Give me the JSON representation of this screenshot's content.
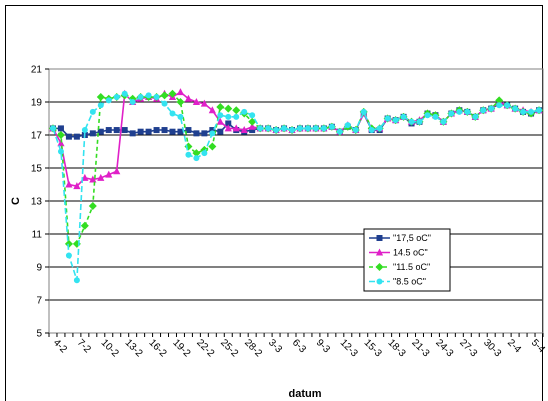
{
  "chart_data": {
    "type": "line",
    "title": "",
    "xlabel": "datum",
    "ylabel": "C",
    "ylim": [
      5,
      21
    ],
    "yticks": [
      5,
      7,
      9,
      11,
      13,
      15,
      17,
      19,
      21
    ],
    "grid": "horizontal",
    "legend_position": "right-middle",
    "categories": [
      "4-2",
      "5-2",
      "6-2",
      "7-2",
      "8-2",
      "9-2",
      "10-2",
      "11-2",
      "12-2",
      "13-2",
      "14-2",
      "15-2",
      "16-2",
      "17-2",
      "18-2",
      "19-2",
      "20-2",
      "21-2",
      "22-2",
      "23-2",
      "24-2",
      "25-2",
      "26-2",
      "27-2",
      "28-2",
      "1-3",
      "2-3",
      "3-3",
      "4-3",
      "5-3",
      "6-3",
      "7-3",
      "8-3",
      "9-3",
      "10-3",
      "11-3",
      "12-3",
      "13-3",
      "14-3",
      "15-3",
      "16-3",
      "17-3",
      "18-3",
      "19-3",
      "20-3",
      "21-3",
      "22-3",
      "23-3",
      "24-3",
      "25-3",
      "26-3",
      "27-3",
      "28-3",
      "29-3",
      "30-3",
      "31-3",
      "1-4",
      "2-4",
      "3-4",
      "4-4",
      "5-4",
      "6-4"
    ],
    "x_tick_labels": [
      "4-2",
      "7-2",
      "10-2",
      "13-2",
      "16-2",
      "19-2",
      "22-2",
      "25-2",
      "28-2",
      "3-3",
      "6-3",
      "9-3",
      "12-3",
      "15-3",
      "18-3",
      "21-3",
      "24-3",
      "27-3",
      "30-3",
      "2-4",
      "5-4"
    ],
    "series": [
      {
        "name": "\"17,5 oC\"",
        "color": "#1f3f8f",
        "marker": "square",
        "dash": "",
        "values": [
          17.4,
          17.4,
          16.9,
          16.9,
          17.0,
          17.1,
          17.2,
          17.3,
          17.3,
          17.3,
          17.1,
          17.2,
          17.2,
          17.3,
          17.3,
          17.2,
          17.2,
          17.3,
          17.1,
          17.1,
          17.3,
          17.2,
          17.7,
          17.3,
          17.2,
          17.3,
          17.4,
          17.4,
          17.3,
          17.4,
          17.3,
          17.4,
          17.4,
          17.4,
          17.4,
          17.5,
          17.2,
          17.5,
          17.3,
          18.3,
          17.3,
          17.3,
          18.0,
          17.9,
          18.1,
          17.7,
          17.8,
          18.3,
          18.2,
          17.8,
          18.3,
          18.5,
          18.4,
          18.1,
          18.5,
          18.6,
          18.9,
          18.8,
          18.6,
          18.4,
          18.3,
          18.5
        ]
      },
      {
        "name": "14.5 oC\"",
        "color": "#e020c8",
        "marker": "triangle",
        "dash": "",
        "values": [
          17.4,
          16.5,
          14.0,
          13.9,
          14.4,
          14.3,
          14.4,
          14.6,
          14.8,
          19.5,
          19.0,
          19.2,
          19.3,
          19.2,
          19.5,
          19.3,
          19.6,
          19.2,
          19.0,
          18.9,
          18.5,
          17.8,
          17.4,
          17.4,
          17.3,
          17.5,
          17.4,
          17.4,
          17.3,
          17.4,
          17.3,
          17.4,
          17.4,
          17.4,
          17.4,
          17.5,
          17.2,
          17.6,
          17.3,
          18.3,
          17.4,
          17.4,
          18.0,
          17.9,
          18.1,
          17.8,
          17.9,
          18.3,
          18.2,
          17.8,
          18.3,
          18.5,
          18.4,
          18.1,
          18.5,
          18.6,
          19.0,
          18.8,
          18.6,
          18.5,
          18.4,
          18.5
        ]
      },
      {
        "name": "\"11.5 oC\"",
        "color": "#33dd22",
        "marker": "diamond",
        "dash": "4,3",
        "values": [
          17.4,
          17.0,
          10.4,
          10.4,
          11.5,
          12.7,
          19.3,
          19.2,
          19.3,
          19.4,
          19.2,
          19.3,
          19.3,
          19.3,
          19.4,
          19.5,
          19.0,
          16.3,
          15.9,
          16.1,
          16.3,
          18.7,
          18.6,
          18.5,
          18.3,
          17.8,
          17.4,
          17.4,
          17.3,
          17.4,
          17.3,
          17.4,
          17.4,
          17.4,
          17.4,
          17.5,
          17.2,
          17.5,
          17.3,
          18.4,
          17.4,
          17.4,
          18.0,
          17.9,
          18.1,
          17.8,
          17.8,
          18.3,
          18.2,
          17.8,
          18.3,
          18.5,
          18.4,
          18.1,
          18.5,
          18.6,
          19.1,
          18.8,
          18.6,
          18.4,
          18.3,
          18.5
        ]
      },
      {
        "name": "\"8.5 oC\"",
        "color": "#33e3f0",
        "marker": "circle",
        "dash": "6,3",
        "values": [
          17.4,
          16.0,
          9.7,
          8.2,
          17.3,
          18.4,
          18.8,
          19.1,
          19.3,
          19.5,
          19.0,
          19.3,
          19.4,
          19.3,
          18.9,
          18.3,
          18.1,
          15.8,
          15.6,
          15.9,
          17.1,
          18.2,
          18.1,
          18.1,
          18.4,
          18.2,
          17.4,
          17.4,
          17.3,
          17.4,
          17.3,
          17.4,
          17.4,
          17.4,
          17.4,
          17.5,
          17.2,
          17.6,
          17.3,
          18.4,
          17.3,
          17.4,
          18.0,
          17.9,
          18.1,
          17.8,
          17.8,
          18.2,
          18.1,
          17.8,
          18.3,
          18.4,
          18.4,
          18.1,
          18.5,
          18.6,
          18.8,
          18.8,
          18.6,
          18.4,
          18.4,
          18.5
        ]
      }
    ]
  }
}
